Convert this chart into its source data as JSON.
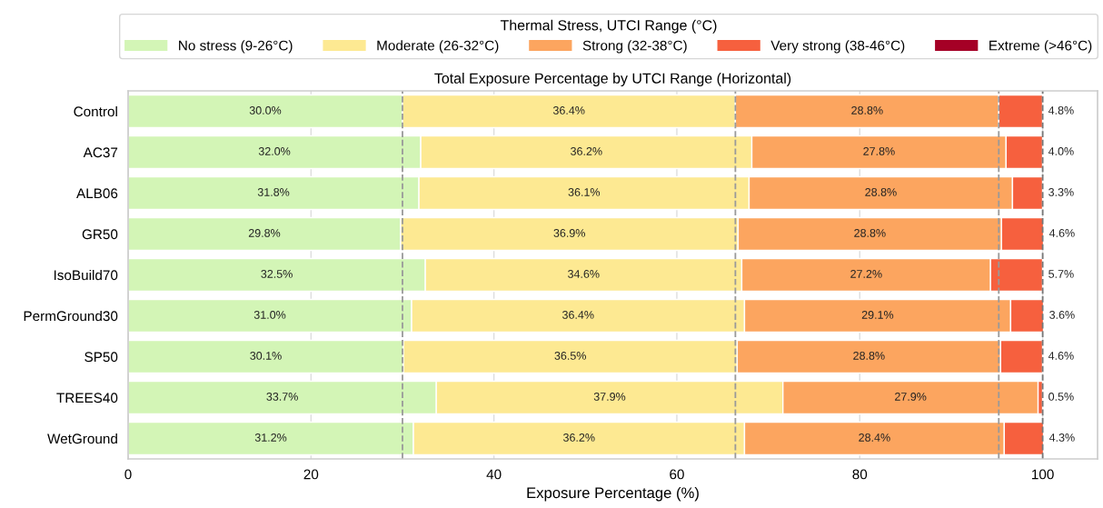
{
  "chart_data": {
    "type": "bar",
    "orientation": "horizontal",
    "stacked": true,
    "title": "Total Exposure Percentage by UTCI Range (Horizontal)",
    "xlabel": "Exposure Percentage (%)",
    "legend_title": "Thermal Stress, UTCI Range (°C)",
    "legend": "top",
    "grid": "x",
    "categories": [
      "Control",
      "AC37",
      "ALB06",
      "GR50",
      "IsoBuild70",
      "PermGround30",
      "SP50",
      "TREES40",
      "WetGround"
    ],
    "xlim": [
      0,
      106
    ],
    "xticks": [
      0,
      20,
      40,
      60,
      80,
      100
    ],
    "series": [
      {
        "name": "No stress (9-26°C)",
        "color": "#d3f5b6",
        "values": [
          30.0,
          32.0,
          31.8,
          29.8,
          32.5,
          31.0,
          30.1,
          33.7,
          31.2
        ],
        "value_labels": [
          "30.0%",
          "32.0%",
          "31.8%",
          "29.8%",
          "32.5%",
          "31.0%",
          "30.1%",
          "33.7%",
          "31.2%"
        ]
      },
      {
        "name": "Moderate (26-32°C)",
        "color": "#fde992",
        "values": [
          36.4,
          36.2,
          36.1,
          36.9,
          34.6,
          36.4,
          36.5,
          37.9,
          36.2
        ],
        "value_labels": [
          "36.4%",
          "36.2%",
          "36.1%",
          "36.9%",
          "34.6%",
          "36.4%",
          "36.5%",
          "37.9%",
          "36.2%"
        ]
      },
      {
        "name": "Strong (32-38°C)",
        "color": "#fca55f",
        "values": [
          28.8,
          27.8,
          28.8,
          28.8,
          27.2,
          29.1,
          28.8,
          27.9,
          28.4
        ],
        "value_labels": [
          "28.8%",
          "27.8%",
          "28.8%",
          "28.8%",
          "27.2%",
          "29.1%",
          "28.8%",
          "27.9%",
          "28.4%"
        ]
      },
      {
        "name": "Very strong (38-46°C)",
        "color": "#f6603e",
        "values": [
          4.8,
          4.0,
          3.3,
          4.6,
          5.7,
          3.6,
          4.6,
          0.5,
          4.3
        ],
        "value_labels": [
          "4.8%",
          "4.0%",
          "3.3%",
          "4.6%",
          "5.7%",
          "3.6%",
          "4.6%",
          "0.5%",
          "4.3%"
        ]
      },
      {
        "name": "Extreme (>46°C)",
        "color": "#a50026",
        "values": [
          0,
          0,
          0,
          0,
          0,
          0,
          0,
          0,
          0
        ]
      }
    ],
    "ref_lines": [
      {
        "axis": "x",
        "value": 30.0,
        "color": "#999999",
        "line_style": "dashed"
      },
      {
        "axis": "x",
        "value": 66.4,
        "color": "#999999",
        "line_style": "dashed"
      },
      {
        "axis": "x",
        "value": 95.2,
        "color": "#999999",
        "line_style": "dashed"
      },
      {
        "axis": "x",
        "value": 100,
        "color": "#777777",
        "line_style": "dashed"
      }
    ]
  }
}
